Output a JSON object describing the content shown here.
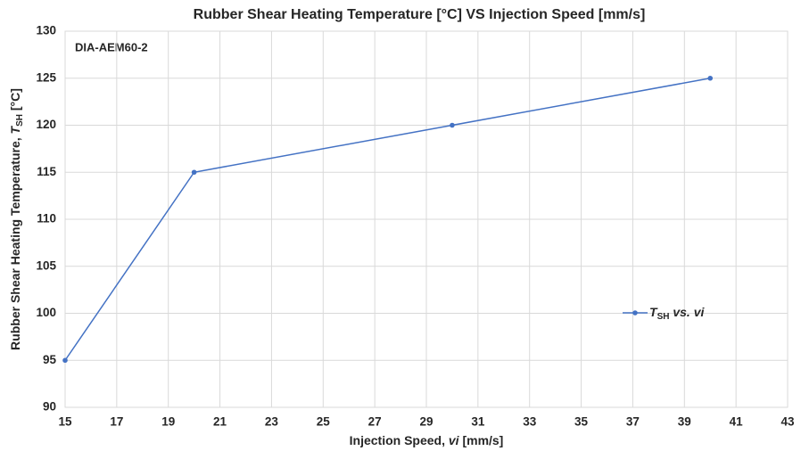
{
  "chart_data": {
    "type": "line",
    "title": "Rubber Shear Heating Temperature [°C] VS Injection Speed [mm/s]",
    "annotation": "DIA-AEM60-2",
    "xlabel": {
      "text": "Injection Speed, ",
      "symbol": "vi",
      "unit": " [mm/s]"
    },
    "ylabel": {
      "text": "Rubber Shear Heating Temperature, ",
      "symbol": "T",
      "subscript": "SH",
      "unit": " [°C]"
    },
    "x": [
      15,
      20,
      30,
      40
    ],
    "series": [
      {
        "name": {
          "symbol": "T",
          "subscript": "SH",
          "text": " vs. vi"
        },
        "color": "#4472c4",
        "values": [
          95,
          115,
          120,
          125
        ]
      }
    ],
    "xlim": [
      15,
      43
    ],
    "xticks": [
      15,
      17,
      19,
      21,
      23,
      25,
      27,
      29,
      31,
      33,
      35,
      37,
      39,
      41,
      43
    ],
    "ylim": [
      90,
      130
    ],
    "yticks": [
      90,
      95,
      100,
      105,
      110,
      115,
      120,
      125,
      130
    ],
    "grid": true,
    "legend": "right"
  }
}
